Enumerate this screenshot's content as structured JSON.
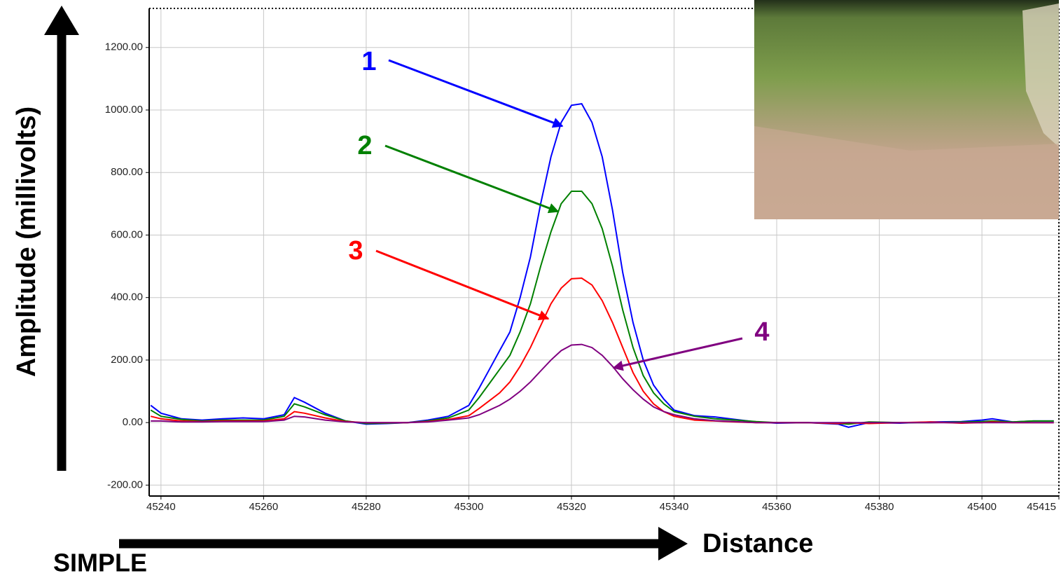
{
  "chart_data": {
    "type": "line",
    "y_label": "Amplitude (millivolts)",
    "x_label": "Distance",
    "caption": "SIMPLE",
    "x": [
      45238,
      45240,
      45244,
      45248,
      45252,
      45256,
      45260,
      45264,
      45266,
      45268,
      45272,
      45276,
      45280,
      45284,
      45288,
      45292,
      45296,
      45300,
      45302,
      45304,
      45306,
      45308,
      45310,
      45312,
      45314,
      45316,
      45318,
      45320,
      45322,
      45324,
      45326,
      45328,
      45330,
      45332,
      45334,
      45336,
      45338,
      45340,
      45344,
      45348,
      45352,
      45356,
      45360,
      45366,
      45372,
      45374,
      45378,
      45384,
      45390,
      45396,
      45400,
      45402,
      45406,
      45410,
      45414
    ],
    "series": [
      {
        "name": "1",
        "color": "#0000ff",
        "values": [
          55,
          30,
          12,
          8,
          12,
          15,
          12,
          25,
          80,
          65,
          30,
          5,
          -5,
          -3,
          0,
          8,
          20,
          55,
          110,
          170,
          230,
          290,
          400,
          530,
          700,
          850,
          960,
          1015,
          1020,
          960,
          850,
          680,
          480,
          320,
          200,
          120,
          75,
          40,
          22,
          18,
          10,
          2,
          -2,
          0,
          -5,
          -15,
          0,
          -2,
          2,
          3,
          8,
          12,
          2,
          5,
          5
        ]
      },
      {
        "name": "2",
        "color": "#008000",
        "values": [
          40,
          20,
          10,
          5,
          8,
          8,
          8,
          20,
          60,
          50,
          25,
          5,
          -3,
          -2,
          0,
          5,
          15,
          40,
          80,
          125,
          170,
          215,
          290,
          380,
          500,
          610,
          700,
          740,
          740,
          700,
          620,
          500,
          360,
          240,
          150,
          95,
          60,
          35,
          20,
          12,
          8,
          3,
          0,
          0,
          -3,
          -5,
          2,
          0,
          0,
          2,
          3,
          5,
          2,
          5,
          5
        ]
      },
      {
        "name": "3",
        "color": "#ff0000",
        "values": [
          20,
          12,
          5,
          3,
          5,
          5,
          5,
          12,
          35,
          30,
          15,
          3,
          0,
          0,
          0,
          3,
          10,
          22,
          45,
          70,
          95,
          130,
          180,
          240,
          310,
          380,
          430,
          460,
          462,
          440,
          390,
          320,
          240,
          160,
          100,
          60,
          35,
          20,
          8,
          5,
          2,
          0,
          0,
          0,
          -3,
          0,
          -3,
          0,
          2,
          -2,
          0,
          2,
          0,
          0,
          0
        ]
      },
      {
        "name": "4",
        "color": "#800080",
        "values": [
          5,
          5,
          2,
          2,
          3,
          3,
          3,
          8,
          20,
          18,
          8,
          2,
          0,
          0,
          0,
          2,
          8,
          15,
          25,
          40,
          55,
          75,
          100,
          130,
          165,
          200,
          230,
          248,
          250,
          240,
          215,
          180,
          140,
          105,
          75,
          50,
          35,
          25,
          12,
          6,
          3,
          0,
          0,
          0,
          0,
          0,
          0,
          0,
          0,
          0,
          0,
          0,
          0,
          0,
          0
        ]
      }
    ],
    "xlim": [
      45237.7,
      45415
    ],
    "ylim": [
      -235,
      1325
    ],
    "xticks": [
      45240,
      45260,
      45280,
      45300,
      45320,
      45340,
      45360,
      45380,
      45400,
      45415
    ],
    "yticks": [
      {
        "value": -200,
        "label": "-200.00"
      },
      {
        "value": 0,
        "label": "0.00"
      },
      {
        "value": 200,
        "label": "200.00"
      },
      {
        "value": 400,
        "label": "400.00"
      },
      {
        "value": 600,
        "label": "600.00"
      },
      {
        "value": 800,
        "label": "800.00"
      },
      {
        "value": 1000,
        "label": "1000.00"
      },
      {
        "value": 1200,
        "label": "1200.00"
      }
    ],
    "grid": true
  }
}
